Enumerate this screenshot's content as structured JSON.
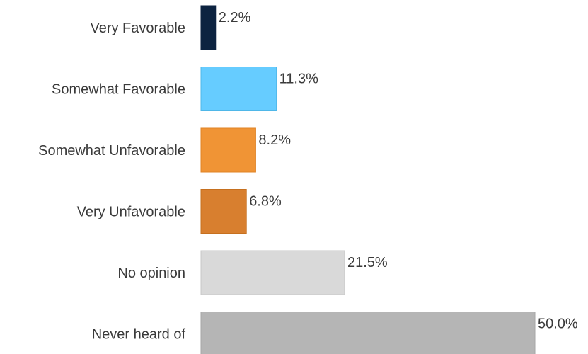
{
  "chart_data": {
    "type": "bar",
    "orientation": "horizontal",
    "title": "",
    "xlabel": "",
    "ylabel": "",
    "grid": false,
    "legend": "none",
    "xlim": [
      0,
      50
    ],
    "categories": [
      "Very Favorable",
      "Somewhat Favorable",
      "Somewhat Unfavorable",
      "Very Unfavorable",
      "No opinion",
      "Never heard of"
    ],
    "values": [
      2.2,
      11.3,
      8.2,
      6.8,
      21.5,
      50.0
    ],
    "value_labels": [
      "2.2%",
      "11.3%",
      "8.2%",
      "6.8%",
      "21.5%",
      "50.0%"
    ],
    "colors": [
      "#0c2340",
      "#66ccff",
      "#f09435",
      "#d87f2f",
      "#d9d9d9",
      "#b5b5b5"
    ]
  }
}
